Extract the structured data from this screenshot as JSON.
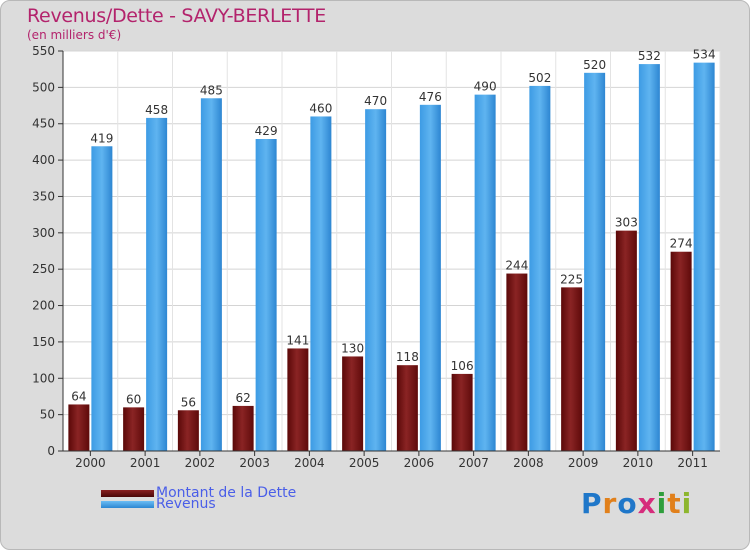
{
  "title": "Revenus/Dette - SAVY-BERLETTE",
  "subtitle": "(en milliers d'€)",
  "colors": {
    "dette": "#7a1010",
    "revenus": "#3a96e0",
    "title": "#b3236c",
    "legend_text": "#4a5ee8"
  },
  "logo_text": "Proxiti",
  "chart_data": {
    "type": "bar",
    "title": "Revenus/Dette - SAVY-BERLETTE",
    "subtitle": "(en milliers d'€)",
    "categories": [
      "2000",
      "2001",
      "2002",
      "2003",
      "2004",
      "2005",
      "2006",
      "2007",
      "2008",
      "2009",
      "2010",
      "2011"
    ],
    "series": [
      {
        "name": "Montant de la Dette",
        "values": [
          64,
          60,
          56,
          62,
          141,
          130,
          118,
          106,
          244,
          225,
          303,
          274
        ]
      },
      {
        "name": "Revenus",
        "values": [
          419,
          458,
          485,
          429,
          460,
          470,
          476,
          490,
          502,
          520,
          532,
          534
        ]
      }
    ],
    "ylim": [
      0,
      550
    ],
    "yticks": [
      0,
      50,
      100,
      150,
      200,
      250,
      300,
      350,
      400,
      450,
      500,
      550
    ],
    "grid": true,
    "legend": "bottom-left"
  }
}
